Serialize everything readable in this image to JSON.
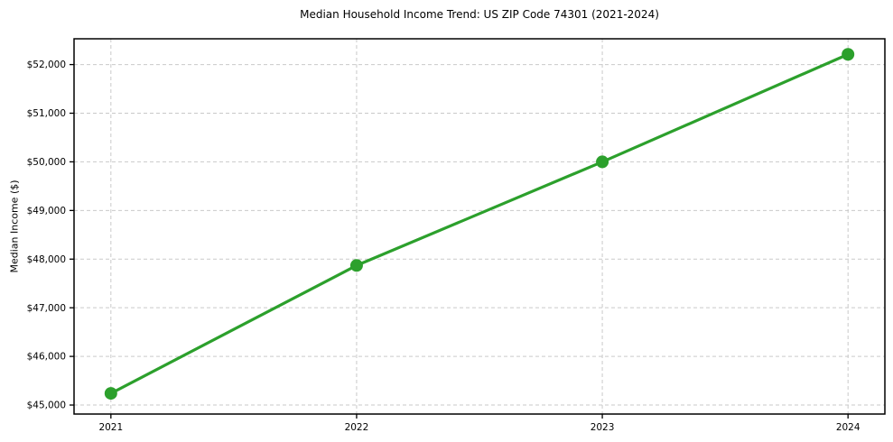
{
  "chart_data": {
    "type": "line",
    "title": "Median Household Income Trend: US ZIP Code 74301 (2021-2024)",
    "xlabel": "",
    "ylabel": "Median Income ($)",
    "x": [
      2021,
      2022,
      2023,
      2024
    ],
    "x_tick_labels": [
      "2021",
      "2022",
      "2023",
      "2024"
    ],
    "series": [
      {
        "name": "Median Household Income",
        "values": [
          45240,
          47870,
          50000,
          52210
        ]
      }
    ],
    "y_ticks": [
      45000,
      46000,
      47000,
      48000,
      49000,
      50000,
      51000,
      52000
    ],
    "y_tick_labels": [
      "$45,000",
      "$46,000",
      "$47,000",
      "$48,000",
      "$49,000",
      "$50,000",
      "$51,000",
      "$52,000"
    ],
    "xlim": [
      2020.85,
      2024.15
    ],
    "ylim": [
      44815,
      52530
    ],
    "grid": true,
    "legend": "none",
    "colors": {
      "line": "#2ca02c",
      "marker": "#2ca02c",
      "grid": "#c9c9c9",
      "frame": "#000000",
      "text": "#000000",
      "background": "#ffffff"
    },
    "marker_style": "circle"
  }
}
